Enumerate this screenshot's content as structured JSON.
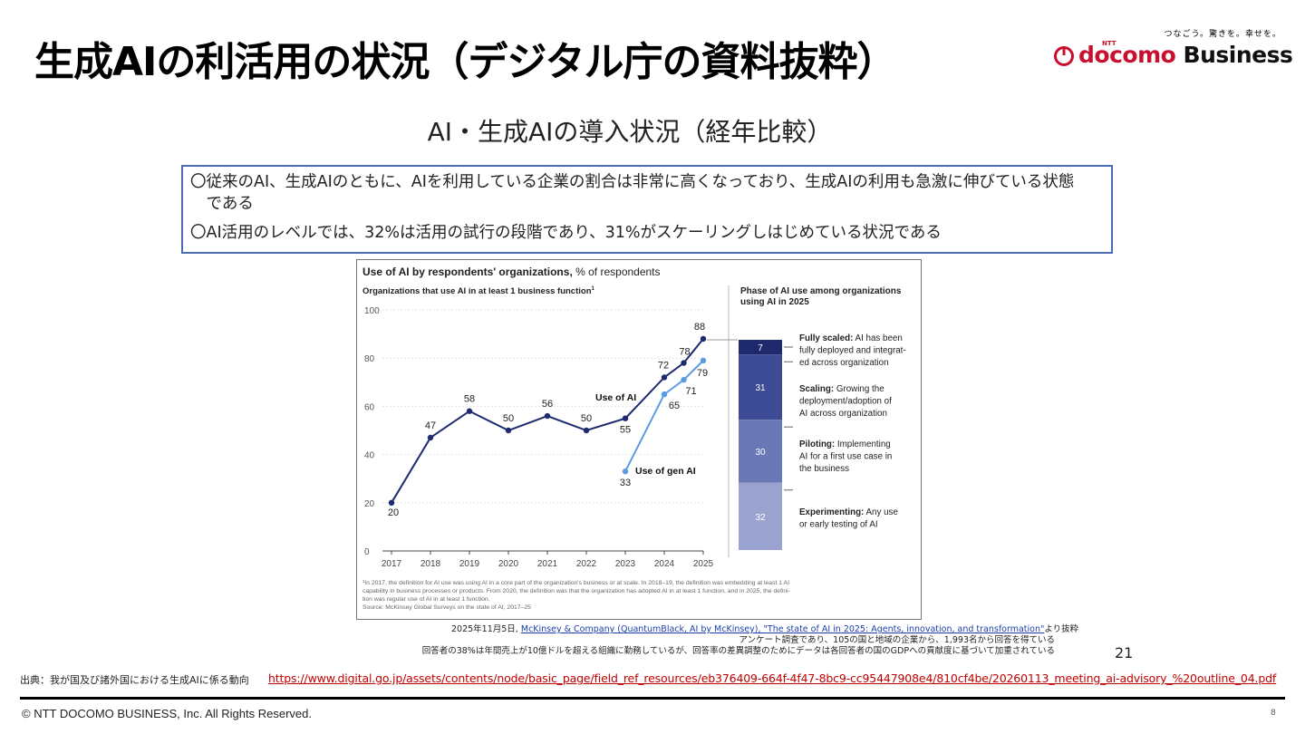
{
  "slide": {
    "title": "生成AIの利活用の状況（デジタル庁の資料抜粋）",
    "subtitle": "AI・生成AIの導入状況（経年比較）",
    "bullets": [
      "〇従来のAI、生成AIのともに、AIを利用している企業の割合は非常に高くなっており、生成AIの利用も急激に伸びている状態",
      "　である",
      "〇AI活用のレベルでは、32%は活用の試行の段階であり、31%がスケーリングしはじめている状況である"
    ],
    "slide_number_inner": "21",
    "caption_line1_prefix": "2025年11月5日,",
    "caption_line1_link": "McKinsey & Company (QuantumBlack, AI by McKinsey), \"The state of AI in 2025: Agents, innovation, and transformation\"",
    "caption_line1_suffix": "より抜粋",
    "caption_line2": "アンケート調査であり、105の国と地域の企業から、1,993名から回答を得ている",
    "caption_line3": "回答者の38%は年間売上が10億ドルを超える組織に勤務しているが、回答率の差異調整のためにデータは各回答者の国のGDPへの貢献度に基づいて加重されている",
    "source_label": "出典：我が国及び諸外国における生成AIに係る動向",
    "source_url": "https://www.digital.go.jp/assets/contents/node/basic_page/field_ref_resources/eb376409-664f-4f47-8bc9-cc95447908e4/810cf4be/20260113_meeting_ai-advisory_%20outline_04.pdf",
    "copyright": "© NTT DOCOMO BUSINESS, Inc. All Rights Reserved.",
    "page_number": "8"
  },
  "logo": {
    "tagline": "つなごう。驚きを。幸せを。",
    "ntt": "NTT",
    "docomo": "docomo",
    "business": "Business",
    "icon": "docomo-circle-logo-icon"
  },
  "colors": {
    "use_of_ai": "#1f2a6e",
    "use_of_gen_ai": "#5b9be0",
    "box_border": "#4a6cb3",
    "url_red": "#c00000",
    "docomo_red": "#c8102e",
    "phase_colors": [
      "#1f2a6e",
      "#3c4b93",
      "#6a78b6",
      "#9aa3cf"
    ]
  },
  "chart_data": [
    {
      "type": "line",
      "title": "Use of AI by respondents' organizations,",
      "title_suffix": "% of respondents",
      "subtitle": "Organizations that use AI in at least 1 business function",
      "subtitle_sup": "1",
      "x": [
        "2017",
        "2018",
        "2019",
        "2020",
        "2021",
        "2022",
        "2023",
        "2024",
        "2024",
        "2025"
      ],
      "x_ticks": [
        "2017",
        "2018",
        "2019",
        "2020",
        "2021",
        "2022",
        "2023",
        "2024",
        "2025"
      ],
      "ylim": [
        0,
        100
      ],
      "y_ticks": [
        "0",
        "20",
        "40",
        "60",
        "80",
        "100"
      ],
      "series": [
        {
          "name": "Use of AI",
          "points": [
            {
              "x": 2017,
              "y": 20,
              "label": "20"
            },
            {
              "x": 2018,
              "y": 47,
              "label": "47"
            },
            {
              "x": 2019,
              "y": 58,
              "label": "58"
            },
            {
              "x": 2020,
              "y": 50,
              "label": "50"
            },
            {
              "x": 2021,
              "y": 56,
              "label": "56"
            },
            {
              "x": 2022,
              "y": 50,
              "label": "50"
            },
            {
              "x": 2023,
              "y": 55,
              "label": "55"
            },
            {
              "x": 2024,
              "y": 72,
              "label": "72"
            },
            {
              "x": 2024.5,
              "y": 78,
              "label": "78"
            },
            {
              "x": 2025,
              "y": 88,
              "label": "88"
            }
          ]
        },
        {
          "name": "Use of gen AI",
          "points": [
            {
              "x": 2023,
              "y": 33,
              "label": "33"
            },
            {
              "x": 2024,
              "y": 65,
              "label": "65"
            },
            {
              "x": 2024.5,
              "y": 71,
              "label": "71"
            },
            {
              "x": 2025,
              "y": 79,
              "label": "79"
            }
          ]
        }
      ],
      "footnote": [
        "¹In 2017, the definition for AI use was using AI in a core part of the organization's business or at scale. In 2018–19, the definition was embedding at least 1 AI",
        "capability in business processes or products. From 2020, the definition was that the organization has adopted AI in at least 1 function, and in 2025, the defini-",
        "tion was regular use of AI in at least 1 function.",
        "Source: McKinsey Global Surveys on the state of AI, 2017–25"
      ]
    },
    {
      "type": "bar",
      "stacked": true,
      "title": "Phase of AI use among organizations using AI in 2025",
      "title_lines": [
        "Phase of AI use among organizations",
        "using AI in 2025"
      ],
      "categories": [
        "Fully scaled",
        "Scaling",
        "Piloting",
        "Experimenting"
      ],
      "values": [
        7,
        31,
        30,
        32
      ],
      "descriptions": [
        {
          "bold": "Fully scaled:",
          "lines": [
            " AI has been",
            "fully deployed and integrat-",
            "ed across organization"
          ]
        },
        {
          "bold": "Scaling:",
          "lines": [
            " Growing the",
            "deployment/adoption of",
            "AI across organization"
          ]
        },
        {
          "bold": "Piloting:",
          "lines": [
            " Implementing",
            "AI for a first use case in",
            "the business"
          ]
        },
        {
          "bold": "Experimenting:",
          "lines": [
            " Any use",
            "or early testing of AI"
          ]
        }
      ]
    }
  ]
}
